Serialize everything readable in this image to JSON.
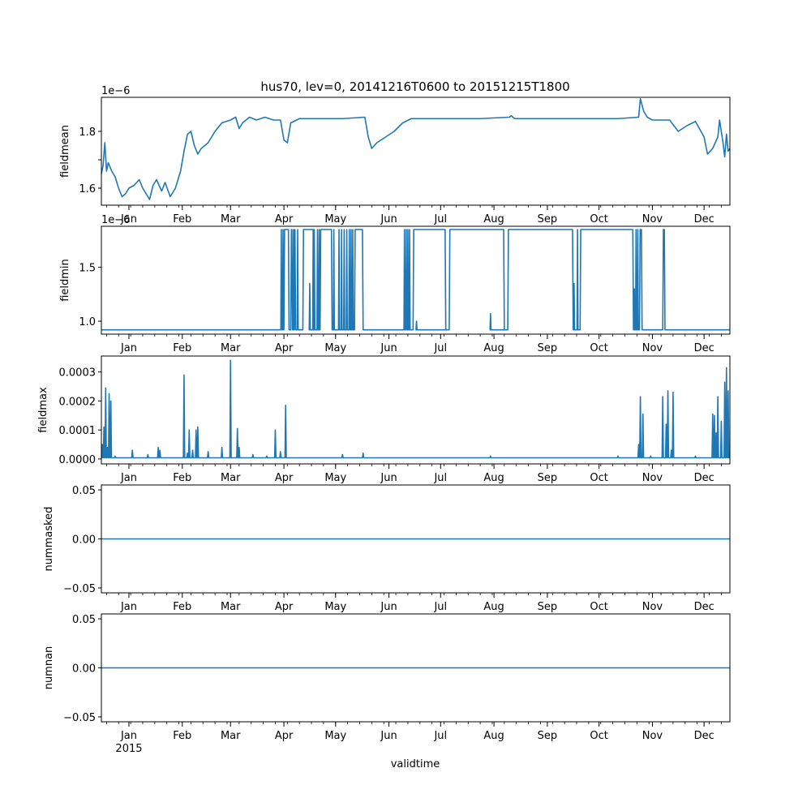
{
  "colors": {
    "series": "#1f77b4",
    "axes": "#000000",
    "background": "#ffffff"
  },
  "chart_data": [
    {
      "type": "line",
      "title": "hus70, lev=0, 20141216T0600 to 20151215T1800",
      "ylabel": "fieldmean",
      "offset_text": "1e−6",
      "ylim": [
        1.54,
        1.92
      ],
      "yticks": [
        1.6,
        1.7,
        1.8
      ],
      "ytick_labels": [
        "1.6",
        "",
        "1.8"
      ],
      "points": [
        [
          0,
          1.65
        ],
        [
          1,
          1.68
        ],
        [
          2,
          1.76
        ],
        [
          3,
          1.66
        ],
        [
          4,
          1.69
        ],
        [
          6,
          1.66
        ],
        [
          8,
          1.64
        ],
        [
          10,
          1.6
        ],
        [
          12,
          1.57
        ],
        [
          14,
          1.58
        ],
        [
          16,
          1.6
        ],
        [
          19,
          1.61
        ],
        [
          22,
          1.63
        ],
        [
          24,
          1.6
        ],
        [
          26,
          1.58
        ],
        [
          28,
          1.56
        ],
        [
          30,
          1.61
        ],
        [
          32,
          1.63
        ],
        [
          35,
          1.59
        ],
        [
          37,
          1.62
        ],
        [
          40,
          1.57
        ],
        [
          43,
          1.6
        ],
        [
          46,
          1.66
        ],
        [
          48,
          1.73
        ],
        [
          50,
          1.79
        ],
        [
          52,
          1.8
        ],
        [
          54,
          1.75
        ],
        [
          56,
          1.72
        ],
        [
          58,
          1.74
        ],
        [
          62,
          1.76
        ],
        [
          66,
          1.8
        ],
        [
          70,
          1.83
        ],
        [
          75,
          1.84
        ],
        [
          78,
          1.85
        ],
        [
          80,
          1.81
        ],
        [
          82,
          1.83
        ],
        [
          86,
          1.85
        ],
        [
          90,
          1.84
        ],
        [
          95,
          1.85
        ],
        [
          100,
          1.84
        ],
        [
          104,
          1.84
        ],
        [
          106,
          1.77
        ],
        [
          108,
          1.76
        ],
        [
          110,
          1.83
        ],
        [
          115,
          1.845
        ],
        [
          125,
          1.845
        ],
        [
          140,
          1.845
        ],
        [
          153,
          1.85
        ],
        [
          155,
          1.78
        ],
        [
          157,
          1.74
        ],
        [
          160,
          1.76
        ],
        [
          165,
          1.78
        ],
        [
          170,
          1.8
        ],
        [
          175,
          1.83
        ],
        [
          180,
          1.845
        ],
        [
          220,
          1.845
        ],
        [
          237,
          1.85
        ],
        [
          238,
          1.855
        ],
        [
          240,
          1.845
        ],
        [
          300,
          1.845
        ],
        [
          312,
          1.85
        ],
        [
          313,
          1.915
        ],
        [
          315,
          1.87
        ],
        [
          317,
          1.85
        ],
        [
          320,
          1.84
        ],
        [
          330,
          1.84
        ],
        [
          335,
          1.8
        ],
        [
          340,
          1.82
        ],
        [
          345,
          1.835
        ],
        [
          350,
          1.78
        ],
        [
          352,
          1.72
        ],
        [
          355,
          1.74
        ],
        [
          358,
          1.78
        ],
        [
          359,
          1.84
        ],
        [
          361,
          1.76
        ],
        [
          362,
          1.71
        ],
        [
          363,
          1.79
        ],
        [
          364,
          1.73
        ],
        [
          365,
          1.74
        ]
      ]
    },
    {
      "type": "line",
      "ylabel": "fieldmin",
      "offset_text": "1e−6",
      "ylim": [
        0.88,
        1.88
      ],
      "yticks": [
        1.0,
        1.5
      ],
      "ytick_labels": [
        "1.0",
        "1.5"
      ],
      "low": 0.92,
      "high": 1.85,
      "segments": [
        [
          106,
          109
        ],
        [
          110,
          111
        ],
        [
          112,
          112.8
        ],
        [
          117,
          124
        ],
        [
          127,
          134
        ],
        [
          147,
          152
        ],
        [
          181,
          200
        ],
        [
          202,
          234
        ],
        [
          236,
          274
        ],
        [
          278,
          309
        ],
        [
          312.5,
          314
        ],
        [
          326,
          327.3
        ]
      ],
      "spikes": [
        [
          104.5,
          1.85
        ],
        [
          105.5,
          1.85
        ],
        [
          111.6,
          1.85
        ],
        [
          114,
          1.85
        ],
        [
          121,
          1.35
        ],
        [
          123,
          1.85
        ],
        [
          125.5,
          1.85
        ],
        [
          126.5,
          1.85
        ],
        [
          135,
          1.85
        ],
        [
          138,
          1.85
        ],
        [
          139.5,
          1.85
        ],
        [
          141,
          1.85
        ],
        [
          142.5,
          1.85
        ],
        [
          144,
          1.85
        ],
        [
          145,
          1.85
        ],
        [
          146,
          1.85
        ],
        [
          176,
          1.85
        ],
        [
          177,
          1.85
        ],
        [
          178,
          1.85
        ],
        [
          179,
          1.85
        ],
        [
          183,
          1.0
        ],
        [
          226,
          1.07
        ],
        [
          274.5,
          1.35
        ],
        [
          276.5,
          1.85
        ],
        [
          309.5,
          1.3
        ],
        [
          310.5,
          1.85
        ],
        [
          311.5,
          1.85
        ]
      ]
    },
    {
      "type": "line",
      "ylabel": "fieldmax",
      "ylim": [
        -1.7e-05,
        0.000355
      ],
      "yticks": [
        0.0,
        0.0001,
        0.0002,
        0.0003
      ],
      "ytick_labels": [
        "0.0000",
        "0.0001",
        "0.0002",
        "0.0003"
      ],
      "baseline": 4e-06,
      "spikes": [
        [
          0.5,
          5e-05
        ],
        [
          1.5,
          0.00011
        ],
        [
          2.5,
          0.000245
        ],
        [
          3.5,
          4e-05
        ],
        [
          4.5,
          0.000225
        ],
        [
          5.5,
          0.0002
        ],
        [
          8,
          1e-05
        ],
        [
          18,
          3e-05
        ],
        [
          27,
          1.5e-05
        ],
        [
          33,
          4e-05
        ],
        [
          34,
          3e-05
        ],
        [
          48,
          0.00029
        ],
        [
          50,
          2e-05
        ],
        [
          51,
          0.0001
        ],
        [
          53,
          3e-05
        ],
        [
          55,
          0.0001
        ],
        [
          56,
          0.00011
        ],
        [
          62,
          2.5e-05
        ],
        [
          70,
          4e-05
        ],
        [
          75,
          0.00034
        ],
        [
          79,
          0.000105
        ],
        [
          80,
          4e-05
        ],
        [
          88,
          1.5e-05
        ],
        [
          96,
          1e-05
        ],
        [
          101,
          0.0001
        ],
        [
          104,
          2.5e-05
        ],
        [
          107,
          0.000185
        ],
        [
          140,
          1.5e-05
        ],
        [
          152,
          2e-05
        ],
        [
          226,
          1e-05
        ],
        [
          300,
          1e-05
        ],
        [
          312,
          5e-05
        ],
        [
          313,
          0.000215
        ],
        [
          314.5,
          0.000155
        ],
        [
          319,
          1e-05
        ],
        [
          326,
          0.000215
        ],
        [
          328,
          0.00012
        ],
        [
          329,
          0.000235
        ],
        [
          331,
          3e-05
        ],
        [
          332,
          0.00023
        ],
        [
          345,
          1e-05
        ],
        [
          355,
          0.000155
        ],
        [
          356,
          0.00015
        ],
        [
          357,
          9e-05
        ],
        [
          358,
          0.000215
        ],
        [
          360,
          0.00013
        ],
        [
          362,
          0.000265
        ],
        [
          363,
          0.000315
        ],
        [
          364,
          0.000235
        ]
      ]
    },
    {
      "type": "line",
      "ylabel": "nummasked",
      "ylim": [
        -0.055,
        0.055
      ],
      "yticks": [
        -0.05,
        0.0,
        0.05
      ],
      "ytick_labels": [
        "−0.05",
        "0.00",
        "0.05"
      ],
      "constant": 0.0
    },
    {
      "type": "line",
      "ylabel": "numnan",
      "xlabel": "validtime",
      "ylim": [
        -0.055,
        0.055
      ],
      "yticks": [
        -0.05,
        0.0,
        0.05
      ],
      "ytick_labels": [
        "−0.05",
        "0.00",
        "0.05"
      ],
      "constant": 0.0
    }
  ],
  "x_axis": {
    "range_days": [
      0,
      365
    ],
    "month_ticks": [
      16,
      47,
      75,
      106,
      136,
      167,
      197,
      228,
      259,
      289,
      320,
      350
    ],
    "month_labels": [
      "Jan",
      "Feb",
      "Mar",
      "Apr",
      "May",
      "Jun",
      "Jul",
      "Aug",
      "Sep",
      "Oct",
      "Nov",
      "Dec"
    ],
    "year_label": "2015"
  }
}
